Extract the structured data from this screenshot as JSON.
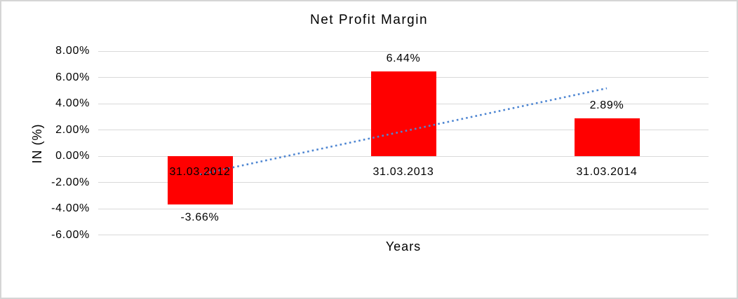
{
  "frame": {
    "background_color": "#FFFFFF",
    "border_color": "#D5D5D5"
  },
  "chart_data": {
    "type": "bar",
    "title": "Net Profit Margin",
    "xlabel": "Years",
    "ylabel": "IN (%)",
    "categories": [
      "31.03.2012",
      "31.03.2013",
      "31.03.2014"
    ],
    "series": [
      {
        "name": "Net Profit Margin",
        "color": "#FF0000",
        "values": [
          -3.66,
          6.44,
          2.89
        ]
      }
    ],
    "data_labels": [
      "-3.66%",
      "6.44%",
      "2.89%"
    ],
    "ylim": [
      -6,
      8
    ],
    "ytick_step": 2,
    "yticks": [
      8,
      6,
      4,
      2,
      0,
      -2,
      -4,
      -6
    ],
    "ytick_labels": [
      "8.00%",
      "6.00%",
      "4.00%",
      "2.00%",
      "0.00%",
      "-2.00%",
      "-4.00%",
      "-6.00%"
    ],
    "grid": true,
    "gridline_color": "#D9D9D9",
    "legend": "none",
    "text_color": "#000000",
    "trendline": {
      "type": "linear",
      "line_style": "dotted",
      "color": "#4E86D2",
      "endpoint_values": [
        -1.39,
        5.17
      ]
    }
  }
}
